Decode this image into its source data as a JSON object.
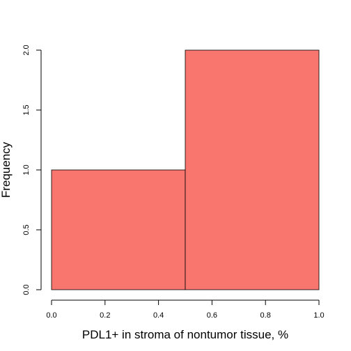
{
  "chart_data": {
    "type": "bar",
    "title": "",
    "xlabel": "PDL1+ in stroma of nontumor tissue, %",
    "ylabel": "Frequency",
    "bins": [
      {
        "x0": 0.0,
        "x1": 0.5,
        "count": 1
      },
      {
        "x0": 0.5,
        "x1": 1.0,
        "count": 2
      }
    ],
    "xlim": [
      0.0,
      1.0
    ],
    "ylim": [
      0.0,
      2.0
    ],
    "x_ticks": [
      "0.0",
      "0.2",
      "0.4",
      "0.6",
      "0.8",
      "1.0"
    ],
    "y_ticks": [
      "0.0",
      "0.5",
      "1.0",
      "1.5",
      "2.0"
    ],
    "bar_color": "#F8766D",
    "grid": false
  }
}
